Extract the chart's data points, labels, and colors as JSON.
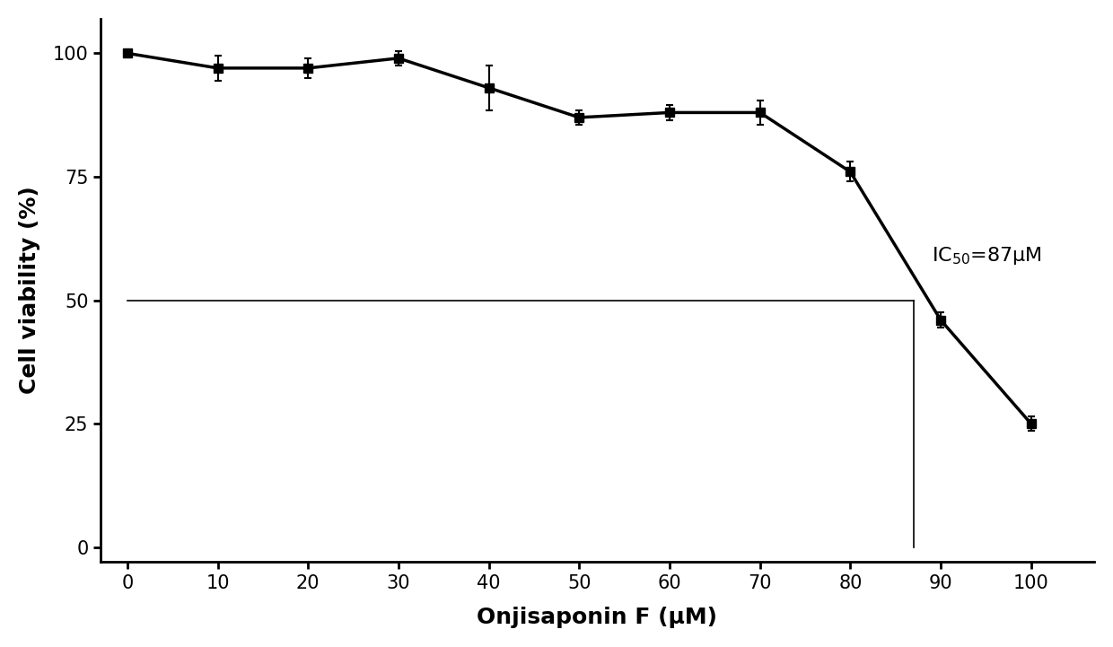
{
  "x": [
    0,
    10,
    20,
    30,
    40,
    50,
    60,
    70,
    80,
    90,
    100
  ],
  "y": [
    100,
    97,
    97,
    99,
    93,
    87,
    88,
    88,
    76,
    46,
    25
  ],
  "yerr": [
    0.5,
    2.5,
    2.0,
    1.5,
    4.5,
    1.5,
    1.5,
    2.5,
    2.0,
    1.5,
    1.5
  ],
  "ic50_x": 87,
  "ic50_y": 50,
  "ic50_label": "IC$_{50}$=87μM",
  "xlabel": "Onjisaponin F (μM)",
  "ylabel": "Cell viability (%)",
  "yticks": [
    0,
    25,
    50,
    75,
    100
  ],
  "xticks": [
    0,
    10,
    20,
    30,
    40,
    50,
    60,
    70,
    80,
    90,
    100
  ],
  "xlim": [
    -3,
    107
  ],
  "ylim": [
    -3,
    107
  ],
  "line_color": "#000000",
  "marker_color": "#000000",
  "marker_size": 7,
  "line_width": 2.5,
  "annotation_fontsize": 16,
  "axis_label_fontsize": 18,
  "tick_fontsize": 15,
  "background_color": "#ffffff",
  "ic50_line_x": 87,
  "ic50_line_y": 50
}
